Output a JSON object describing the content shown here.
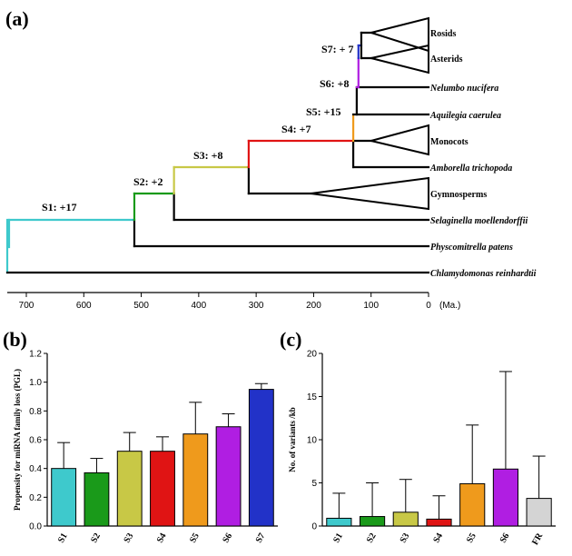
{
  "panel_labels": {
    "a": "(a)",
    "b": "(b)",
    "c": "(c)"
  },
  "colors": {
    "S1": "#3ec9cc",
    "S2": "#1a9a1a",
    "S3": "#c8c846",
    "S4": "#e01414",
    "S5": "#ef9a1c",
    "S6": "#b01ee2",
    "S7": "#2232c8",
    "FR": "#d4d4d4"
  },
  "chart_data": [
    {
      "type": "tree",
      "time_axis": {
        "label": "(Ma.)",
        "ticks": [
          700,
          600,
          500,
          400,
          300,
          200,
          100,
          0
        ],
        "range": [
          730,
          0
        ]
      },
      "stages": [
        {
          "label": "S1: +17",
          "stage": "S1",
          "from_ma": 730,
          "to_ma": 512
        },
        {
          "label": "S2: +2",
          "stage": "S2",
          "from_ma": 512,
          "to_ma": 443
        },
        {
          "label": "S3: +8",
          "stage": "S3",
          "from_ma": 443,
          "to_ma": 313
        },
        {
          "label": "S4: +7",
          "stage": "S4",
          "from_ma": 313,
          "to_ma": 131
        },
        {
          "label": "S5: +15",
          "stage": "S5",
          "from_ma": 131,
          "to_ma": 125
        },
        {
          "label": "S6: +8",
          "stage": "S6",
          "from_ma": 125,
          "to_ma": 122
        },
        {
          "label": "S7: + 7",
          "stage": "S7",
          "from_ma": 122,
          "to_ma": 117
        }
      ],
      "taxa": [
        {
          "name": "Rosids",
          "italic": false,
          "clade": true
        },
        {
          "name": "Asterids",
          "italic": false,
          "clade": true
        },
        {
          "name": "Nelumbo  nucifera",
          "italic": true,
          "clade": false
        },
        {
          "name": "Aquilegia  caerulea",
          "italic": true,
          "clade": false
        },
        {
          "name": "Monocots",
          "italic": false,
          "clade": true
        },
        {
          "name": "Amborella  trichopoda",
          "italic": true,
          "clade": false
        },
        {
          "name": "Gymnosperms",
          "italic": false,
          "clade": true
        },
        {
          "name": "Selaginella  moellendorffii",
          "italic": true,
          "clade": false
        },
        {
          "name": "Physcomitrella  patens",
          "italic": true,
          "clade": false
        },
        {
          "name": "Chlamydomonas  reinhardtii",
          "italic": true,
          "clade": false
        }
      ]
    },
    {
      "type": "bar",
      "categories": [
        "S1",
        "S2",
        "S3",
        "S4",
        "S5",
        "S6",
        "S7"
      ],
      "values": [
        0.4,
        0.37,
        0.52,
        0.52,
        0.64,
        0.69,
        0.95
      ],
      "errors": [
        0.18,
        0.1,
        0.13,
        0.1,
        0.22,
        0.09,
        0.04
      ],
      "ylabel": "Propensity for miRNA family loss (PGL)",
      "ylim": [
        0,
        1.2
      ],
      "yticks": [
        "0.0",
        "0.2",
        "0.4",
        "0.6",
        "0.8",
        "1.0",
        "1.2"
      ]
    },
    {
      "type": "bar",
      "categories": [
        "S1",
        "S2",
        "S3",
        "S4",
        "S5",
        "S6",
        "FR"
      ],
      "values": [
        0.9,
        1.1,
        1.6,
        0.8,
        4.9,
        6.6,
        3.2
      ],
      "errors": [
        2.9,
        3.9,
        3.8,
        2.7,
        6.8,
        11.3,
        4.9
      ],
      "ylabel": "No. of variants /kb",
      "ylim": [
        0,
        20
      ],
      "yticks": [
        "0",
        "5",
        "10",
        "15",
        "20"
      ]
    }
  ]
}
